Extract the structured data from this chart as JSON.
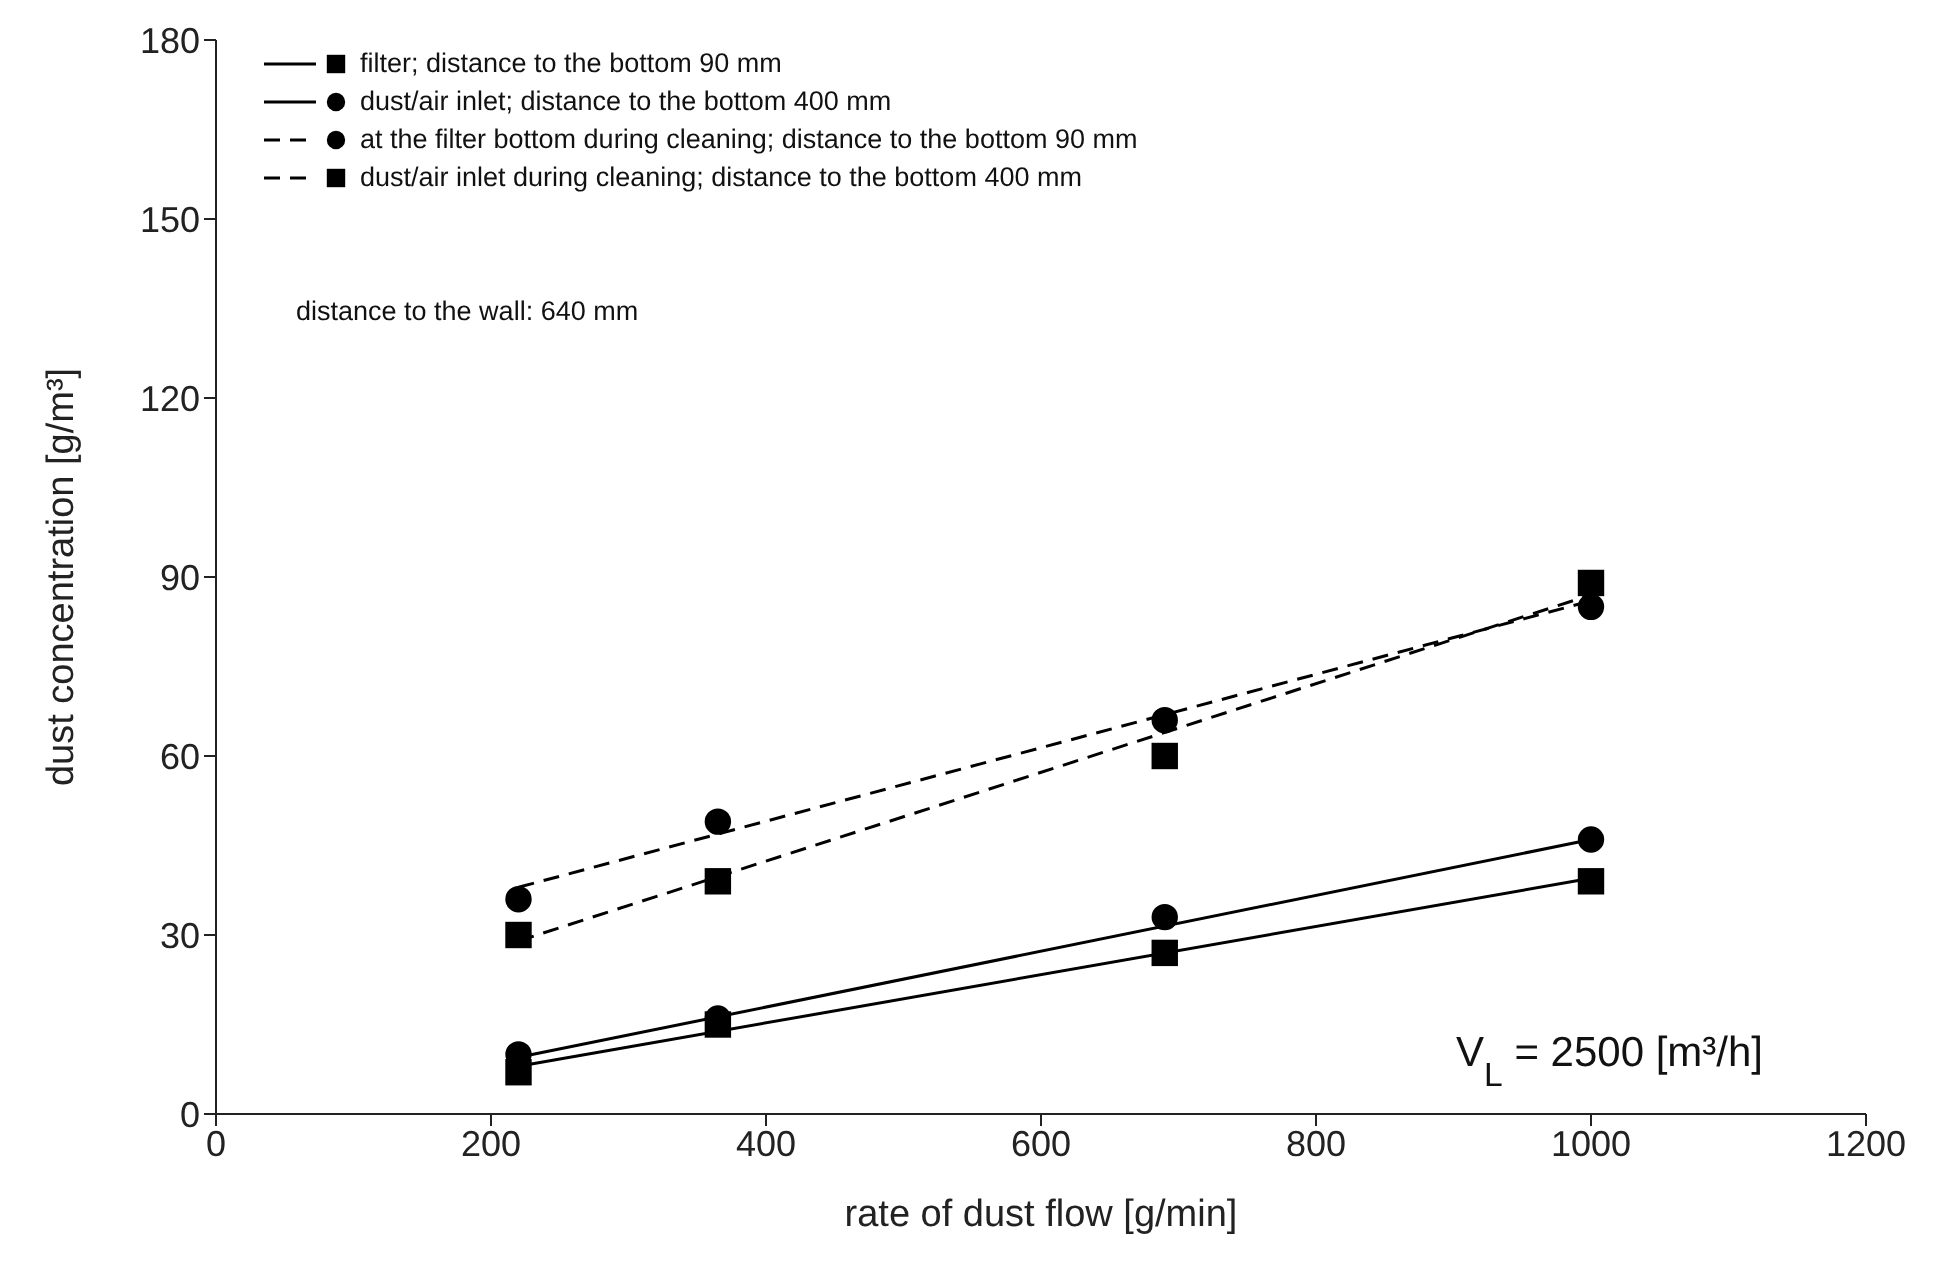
{
  "chart_data": {
    "type": "scatter",
    "xlabel": "rate of dust flow [g/min]",
    "ylabel": "dust concentration  [g/m³]",
    "xlim": [
      0,
      1200
    ],
    "xticks": [
      0,
      200,
      400,
      600,
      800,
      1000,
      1200
    ],
    "ylim": [
      0,
      180
    ],
    "yticks": [
      0,
      30,
      60,
      90,
      120,
      150,
      180
    ],
    "grid": false,
    "legend": "top left",
    "annotations": [
      "distance to the wall: 640 mm",
      "V$_{L}$ = 2500 [m³/h]"
    ],
    "series": [
      {
        "name": "filter; distance to the bottom 90 mm",
        "type": "scatter",
        "marker": "square",
        "line_style": "solid",
        "color": "#000000",
        "x": [
          220,
          365,
          690,
          1000
        ],
        "values": [
          7,
          15,
          27,
          39
        ]
      },
      {
        "name": "dust/air inlet; distance to the bottom 400 mm",
        "type": "scatter",
        "marker": "circle",
        "line_style": "solid",
        "color": "#000000",
        "x": [
          220,
          365,
          690,
          1000
        ],
        "values": [
          10,
          16,
          33,
          46
        ]
      },
      {
        "name": "at the filter bottom during cleaning; distance to the bottom 90 mm",
        "type": "scatter",
        "marker": "circle",
        "line_style": "dashed",
        "color": "#000000",
        "x": [
          220,
          365,
          690,
          1000
        ],
        "values": [
          36,
          49,
          66,
          85
        ]
      },
      {
        "name": "dust/air inlet during cleaning; distance to the bottom 400 mm",
        "type": "scatter",
        "marker": "square",
        "line_style": "dashed",
        "color": "#000000",
        "x": [
          220,
          365,
          690,
          1000
        ],
        "values": [
          30,
          39,
          60,
          89
        ]
      },
      {
        "type": "line",
        "line_style": "solid",
        "color": "#000000",
        "x": [
          220,
          1000
        ],
        "values": [
          8,
          39.5
        ]
      },
      {
        "type": "line",
        "line_style": "solid",
        "color": "#000000",
        "x": [
          220,
          1000
        ],
        "values": [
          9.5,
          46
        ]
      },
      {
        "type": "line",
        "line_style": "dashed",
        "color": "#000000",
        "x": [
          220,
          1000
        ],
        "values": [
          38,
          86
        ]
      },
      {
        "type": "line",
        "line_style": "dashed",
        "color": "#000000",
        "x": [
          220,
          1000
        ],
        "values": [
          29,
          87
        ]
      }
    ]
  }
}
